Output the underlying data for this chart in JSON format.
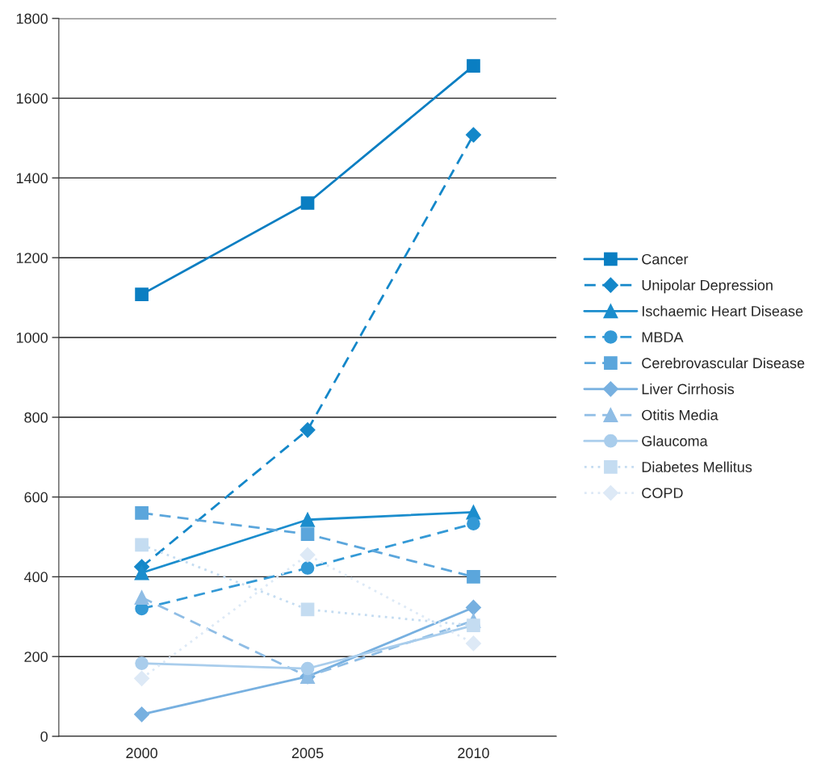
{
  "chart_data": {
    "type": "line",
    "categories": [
      "2000",
      "2005",
      "2010"
    ],
    "series": [
      {
        "name": "Cancer",
        "color": "#0a7ec2",
        "marker": "square",
        "line_style": "solid",
        "values": [
          1108,
          1337,
          1681
        ]
      },
      {
        "name": "Unipolar Depression",
        "color": "#1487c9",
        "marker": "diamond",
        "line_style": "dashed",
        "values": [
          425,
          768,
          1508
        ]
      },
      {
        "name": "Ischaemic Heart Disease",
        "color": "#1b8dcd",
        "marker": "triangle",
        "line_style": "solid",
        "values": [
          410,
          543,
          562
        ]
      },
      {
        "name": "MBDA",
        "color": "#3399d6",
        "marker": "circle",
        "line_style": "dashed",
        "values": [
          320,
          422,
          533
        ]
      },
      {
        "name": "Cerebrovascular Disease",
        "color": "#5ba6dc",
        "marker": "square",
        "line_style": "dashed",
        "values": [
          560,
          507,
          400
        ]
      },
      {
        "name": "Liver Cirrhosis",
        "color": "#77b0e0",
        "marker": "diamond",
        "line_style": "solid",
        "values": [
          55,
          150,
          323
        ]
      },
      {
        "name": "Otitis Media",
        "color": "#8fbde5",
        "marker": "triangle",
        "line_style": "dashed",
        "values": [
          348,
          150,
          290
        ]
      },
      {
        "name": "Glaucoma",
        "color": "#a9cdec",
        "marker": "circle",
        "line_style": "solid",
        "values": [
          183,
          170,
          278
        ]
      },
      {
        "name": "Diabetes Mellitus",
        "color": "#c4dcf1",
        "marker": "square",
        "line_style": "dotted",
        "values": [
          480,
          318,
          278
        ]
      },
      {
        "name": "COPD",
        "color": "#dde9f6",
        "marker": "diamond",
        "line_style": "dotted",
        "values": [
          145,
          455,
          233
        ]
      }
    ],
    "ylim": [
      0,
      1800
    ],
    "yticks": [
      0,
      200,
      400,
      600,
      800,
      1000,
      1200,
      1400,
      1600,
      1800
    ],
    "grid": "y",
    "legend": "right"
  }
}
